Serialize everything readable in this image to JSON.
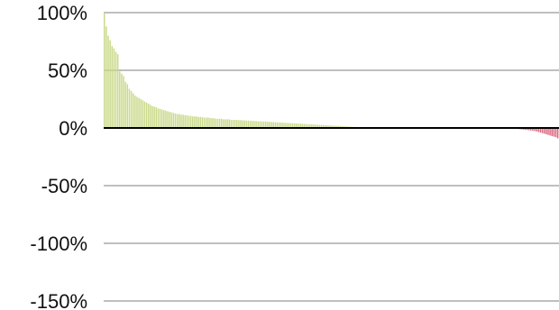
{
  "chart_data": {
    "type": "bar",
    "title": "",
    "xlabel": "",
    "ylabel": "",
    "ylim": [
      -150,
      100
    ],
    "y_ticks": [
      100,
      50,
      0,
      -50,
      -100,
      -150
    ],
    "y_tick_labels": [
      "100%",
      "50%",
      "0%",
      "-50%",
      "-100%",
      "-150%"
    ],
    "grid": true,
    "legend": "none",
    "colors": {
      "positive": "#c9d98a",
      "negative": "#d9677e",
      "zero_line": "#000000",
      "grid": "#7f7f7f"
    },
    "values": [
      100,
      88,
      80,
      76,
      71,
      69,
      66,
      64,
      49,
      47,
      45,
      40,
      38,
      34,
      32,
      30,
      28,
      27,
      26,
      25,
      24,
      23,
      22,
      21,
      20,
      19,
      18.5,
      18,
      17,
      16.5,
      16,
      15.5,
      15,
      14.5,
      14,
      13.5,
      13,
      12.5,
      12,
      12,
      11.5,
      11.5,
      11,
      11,
      10.5,
      10.5,
      10,
      10,
      10,
      9.5,
      9.5,
      9.5,
      9,
      9,
      9,
      8.5,
      8.5,
      8.5,
      8,
      8,
      8,
      8,
      7.5,
      7.5,
      7.5,
      7.5,
      7,
      7,
      7,
      7,
      6.8,
      6.8,
      6.6,
      6.6,
      6.4,
      6.4,
      6.2,
      6.2,
      6,
      6,
      5.8,
      5.8,
      5.6,
      5.6,
      5.5,
      5.4,
      5.3,
      5.2,
      5.1,
      5,
      4.9,
      4.8,
      4.7,
      4.6,
      4.5,
      4.4,
      4.3,
      4.2,
      4.1,
      4,
      3.9,
      3.8,
      3.7,
      3.6,
      3.5,
      3.4,
      3.3,
      3.2,
      3.1,
      3,
      2.9,
      2.8,
      2.7,
      2.6,
      2.5,
      2.4,
      2.3,
      2.2,
      2.1,
      2,
      1.9,
      1.8,
      1.7,
      1.6,
      1.5,
      1.4,
      1.3,
      1.2,
      1.1,
      1,
      0.9,
      0.8,
      0.7,
      0.6,
      0.5,
      0.5,
      0.4,
      0.4,
      0.3,
      0.3,
      0.2,
      0.2,
      0.1,
      0.1,
      0.1,
      0.05,
      0.05,
      0,
      0,
      0,
      0,
      0,
      0,
      0,
      0,
      0,
      0,
      0,
      0,
      0,
      0,
      0,
      0,
      0,
      0,
      0,
      0,
      0,
      0,
      0,
      0,
      0,
      0,
      0,
      0,
      0,
      0,
      0,
      0,
      0,
      0,
      0,
      0,
      0,
      0,
      0,
      0,
      0,
      0,
      0,
      0,
      0,
      0,
      0,
      0,
      0,
      0,
      0,
      0,
      0,
      0,
      0,
      0,
      0,
      0,
      0,
      0,
      0,
      0,
      0,
      0,
      0,
      -0.2,
      -0.4,
      -0.6,
      -0.8,
      -1,
      -1.2,
      -1.4,
      -1.6,
      -1.8,
      -2,
      -2.2,
      -2.4,
      -2.6,
      -3,
      -3.5,
      -4,
      -4.5,
      -5,
      -5.5,
      -6,
      -6.5,
      -7,
      -7.5,
      -8,
      -9
    ]
  }
}
